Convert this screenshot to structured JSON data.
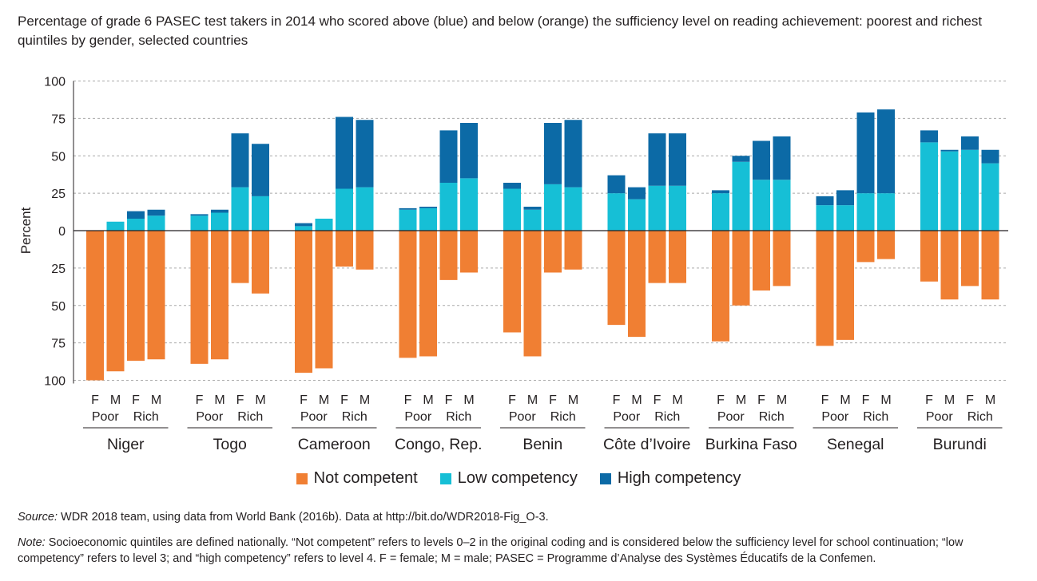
{
  "title": "Percentage of grade 6 PASEC test takers in 2014 who scored above (blue) and below (orange) the sufficiency level on reading achievement: poorest and richest quintiles by gender, selected countries",
  "colors": {
    "not_competent": "#f07f33",
    "low_competency": "#16bfd6",
    "high_competency": "#0c6aa6"
  },
  "legend": {
    "not_competent": "Not competent",
    "low_competency": "Low competency",
    "high_competency": "High competency"
  },
  "source": {
    "label": "Source:",
    "text": " WDR 2018 team, using data from World Bank (2016b). Data at http://bit.do/WDR2018-Fig_O-3."
  },
  "note": {
    "label": "Note:",
    "text": " Socioeconomic quintiles are defined nationally. “Not competent” refers to levels 0–2 in the original coding and is considered below the sufficiency level for school continuation; “low competency” refers to level 3; and “high competency” refers to level 4. F = female; M = male; PASEC = Programme d’Analyse des Systèmes Éducatifs de la Confemen."
  },
  "chart_data": {
    "type": "bar",
    "stacked": true,
    "ylabel": "Percent",
    "yticks": [
      "100",
      "75",
      "50",
      "25",
      "0",
      "25",
      "50",
      "75",
      "100"
    ],
    "ylim": [
      -100,
      100
    ],
    "grid": true,
    "legend_position": "bottom",
    "bar_labels": [
      "F",
      "M",
      "F",
      "M"
    ],
    "quintile_labels": [
      "Poor",
      "Rich"
    ],
    "series": [
      {
        "name": "Not competent",
        "key": "not_competent"
      },
      {
        "name": "Low competency",
        "key": "low_competency"
      },
      {
        "name": "High competency",
        "key": "high_competency"
      }
    ],
    "countries": [
      {
        "name": "Niger",
        "bars": [
          {
            "not_competent": 100,
            "low_competency": 0,
            "high_competency": 0
          },
          {
            "not_competent": 94,
            "low_competency": 6,
            "high_competency": 0
          },
          {
            "not_competent": 87,
            "low_competency": 8,
            "high_competency": 5
          },
          {
            "not_competent": 86,
            "low_competency": 10,
            "high_competency": 4
          }
        ]
      },
      {
        "name": "Togo",
        "bars": [
          {
            "not_competent": 89,
            "low_competency": 10,
            "high_competency": 1
          },
          {
            "not_competent": 86,
            "low_competency": 12,
            "high_competency": 2
          },
          {
            "not_competent": 35,
            "low_competency": 29,
            "high_competency": 36
          },
          {
            "not_competent": 42,
            "low_competency": 23,
            "high_competency": 35
          }
        ]
      },
      {
        "name": "Cameroon",
        "bars": [
          {
            "not_competent": 95,
            "low_competency": 3,
            "high_competency": 2
          },
          {
            "not_competent": 92,
            "low_competency": 8,
            "high_competency": 0
          },
          {
            "not_competent": 24,
            "low_competency": 28,
            "high_competency": 48
          },
          {
            "not_competent": 26,
            "low_competency": 29,
            "high_competency": 45
          }
        ]
      },
      {
        "name": "Congo, Rep.",
        "bars": [
          {
            "not_competent": 85,
            "low_competency": 14,
            "high_competency": 1
          },
          {
            "not_competent": 84,
            "low_competency": 15,
            "high_competency": 1
          },
          {
            "not_competent": 33,
            "low_competency": 32,
            "high_competency": 35
          },
          {
            "not_competent": 28,
            "low_competency": 35,
            "high_competency": 37
          }
        ]
      },
      {
        "name": "Benin",
        "bars": [
          {
            "not_competent": 68,
            "low_competency": 28,
            "high_competency": 4
          },
          {
            "not_competent": 84,
            "low_competency": 14,
            "high_competency": 2
          },
          {
            "not_competent": 28,
            "low_competency": 31,
            "high_competency": 41
          },
          {
            "not_competent": 26,
            "low_competency": 29,
            "high_competency": 45
          }
        ]
      },
      {
        "name": "Côte d’Ivoire",
        "bars": [
          {
            "not_competent": 63,
            "low_competency": 25,
            "high_competency": 12
          },
          {
            "not_competent": 71,
            "low_competency": 21,
            "high_competency": 8
          },
          {
            "not_competent": 35,
            "low_competency": 30,
            "high_competency": 35
          },
          {
            "not_competent": 35,
            "low_competency": 30,
            "high_competency": 35
          }
        ]
      },
      {
        "name": "Burkina Faso",
        "bars": [
          {
            "not_competent": 74,
            "low_competency": 25,
            "high_competency": 2
          },
          {
            "not_competent": 50,
            "low_competency": 46,
            "high_competency": 4
          },
          {
            "not_competent": 40,
            "low_competency": 34,
            "high_competency": 26
          },
          {
            "not_competent": 37,
            "low_competency": 34,
            "high_competency": 29
          }
        ]
      },
      {
        "name": "Senegal",
        "bars": [
          {
            "not_competent": 77,
            "low_competency": 17,
            "high_competency": 6
          },
          {
            "not_competent": 73,
            "low_competency": 17,
            "high_competency": 10
          },
          {
            "not_competent": 21,
            "low_competency": 25,
            "high_competency": 54
          },
          {
            "not_competent": 19,
            "low_competency": 25,
            "high_competency": 56
          }
        ]
      },
      {
        "name": "Burundi",
        "bars": [
          {
            "not_competent": 34,
            "low_competency": 59,
            "high_competency": 8
          },
          {
            "not_competent": 46,
            "low_competency": 53,
            "high_competency": 1
          },
          {
            "not_competent": 37,
            "low_competency": 54,
            "high_competency": 9
          },
          {
            "not_competent": 46,
            "low_competency": 45,
            "high_competency": 9
          }
        ]
      }
    ]
  }
}
